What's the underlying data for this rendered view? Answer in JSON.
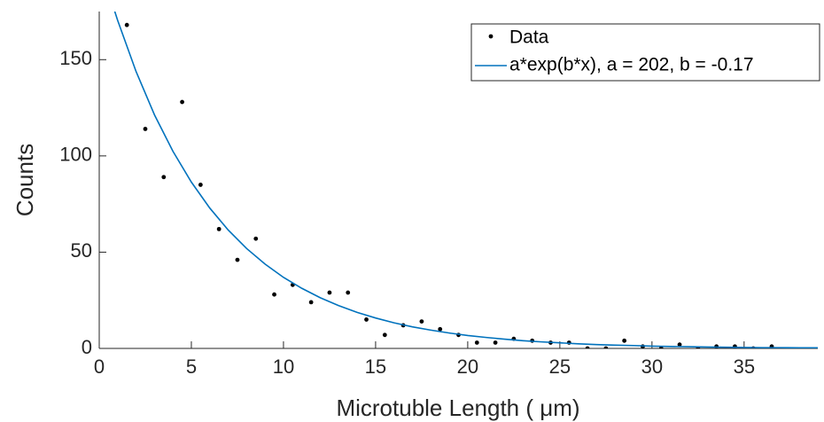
{
  "chart_data": {
    "type": "scatter",
    "xlabel": "Microtuble Length ( μm)",
    "ylabel": "Counts",
    "xlim": [
      0,
      39
    ],
    "ylim": [
      0,
      175
    ],
    "xticks": [
      0,
      5,
      10,
      15,
      20,
      25,
      30,
      35
    ],
    "yticks": [
      0,
      50,
      100,
      150
    ],
    "legend": "upper right",
    "series": [
      {
        "name": "Data",
        "type": "scatter",
        "color": "#000000",
        "x": [
          1.5,
          2.5,
          3.5,
          4.5,
          5.5,
          6.5,
          7.5,
          8.5,
          9.5,
          10.5,
          11.5,
          12.5,
          13.5,
          14.5,
          15.5,
          16.5,
          17.5,
          18.5,
          19.5,
          20.5,
          21.5,
          22.5,
          23.5,
          24.5,
          25.5,
          26.5,
          27.5,
          28.5,
          29.5,
          30.5,
          31.5,
          32.5,
          33.5,
          34.5,
          35.5,
          36.5
        ],
        "values": [
          168,
          114,
          89,
          128,
          85,
          62,
          46,
          57,
          28,
          33,
          24,
          29,
          29,
          15,
          7,
          12,
          14,
          10,
          7,
          3,
          3,
          5,
          4,
          3,
          3,
          0,
          0,
          4,
          1,
          0,
          2,
          0,
          1,
          1,
          0,
          1
        ]
      },
      {
        "name": "a*exp(b*x), a = 202, b = -0.17",
        "type": "line",
        "color": "#0072BD",
        "x": [
          0.8,
          1,
          2,
          3,
          4,
          5,
          6,
          7,
          8,
          9,
          10,
          11,
          12,
          13,
          14,
          15,
          16,
          17,
          18,
          19,
          20,
          21,
          22,
          23,
          24,
          25,
          26,
          27,
          28,
          29,
          30,
          31,
          32,
          33,
          34,
          35,
          36,
          37,
          38,
          39
        ],
        "values": [
          176.3,
          170.4,
          143.8,
          121.3,
          102.4,
          86.4,
          72.9,
          61.5,
          51.9,
          43.8,
          36.9,
          31.2,
          26.3,
          22.2,
          18.7,
          15.8,
          13.3,
          11.2,
          9.5,
          8.0,
          6.7,
          5.7,
          4.8,
          4.0,
          3.4,
          2.9,
          2.4,
          2.0,
          1.7,
          1.5,
          1.2,
          1.0,
          0.9,
          0.7,
          0.6,
          0.5,
          0.4,
          0.4,
          0.3,
          0.3
        ]
      }
    ]
  }
}
